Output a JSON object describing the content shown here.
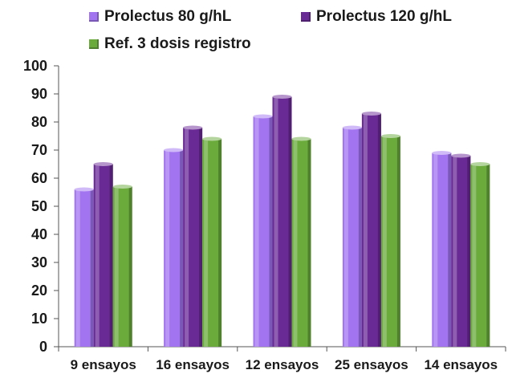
{
  "chart_data": {
    "type": "bar",
    "categories": [
      "9 ensayos",
      "16 ensayos",
      "12 ensayos",
      "25 ensayos",
      "14 ensayos"
    ],
    "series": [
      {
        "name": "Prolectus 80 g/hL",
        "color": "#a274f0",
        "values": [
          56,
          70,
          82,
          78,
          69
        ]
      },
      {
        "name": "Prolectus 120 g/hL",
        "color": "#6a2a96",
        "values": [
          65,
          78,
          89,
          83,
          68
        ]
      },
      {
        "name": "Ref. 3 dosis registro",
        "color": "#6aab3c",
        "values": [
          57,
          74,
          74,
          75,
          65
        ]
      }
    ],
    "ylim": [
      0,
      100
    ],
    "yticks": [
      0,
      10,
      20,
      30,
      40,
      50,
      60,
      70,
      80,
      90,
      100
    ],
    "grid": false,
    "legend_position": "top"
  }
}
